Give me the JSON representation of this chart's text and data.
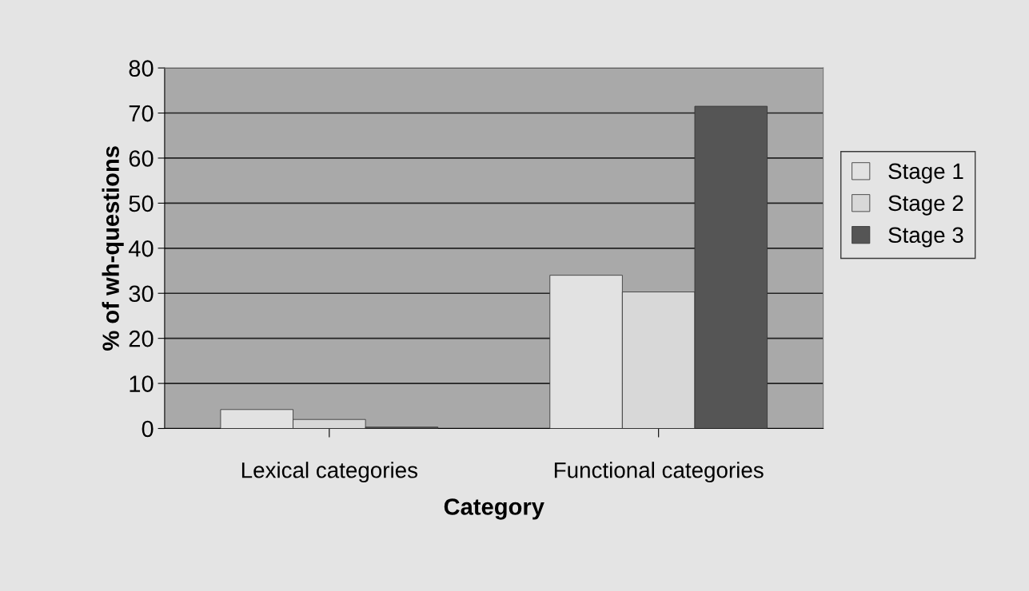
{
  "chart_data": {
    "type": "bar",
    "xlabel": "Category",
    "ylabel": "% of wh-questions",
    "categories": [
      "Lexical categories",
      "Functional categories"
    ],
    "series": [
      {
        "name": "Stage 1",
        "color": "#e2e2e2",
        "values": [
          4.2,
          34.0
        ]
      },
      {
        "name": "Stage 2",
        "color": "#d8d8d8",
        "values": [
          2.0,
          30.3
        ]
      },
      {
        "name": "Stage 3",
        "color": "#555555",
        "values": [
          0.3,
          71.5
        ]
      }
    ],
    "ylim": [
      0,
      80
    ],
    "yticks": [
      0,
      10,
      20,
      30,
      40,
      50,
      60,
      70,
      80
    ],
    "grid": "y",
    "legend": "right"
  }
}
